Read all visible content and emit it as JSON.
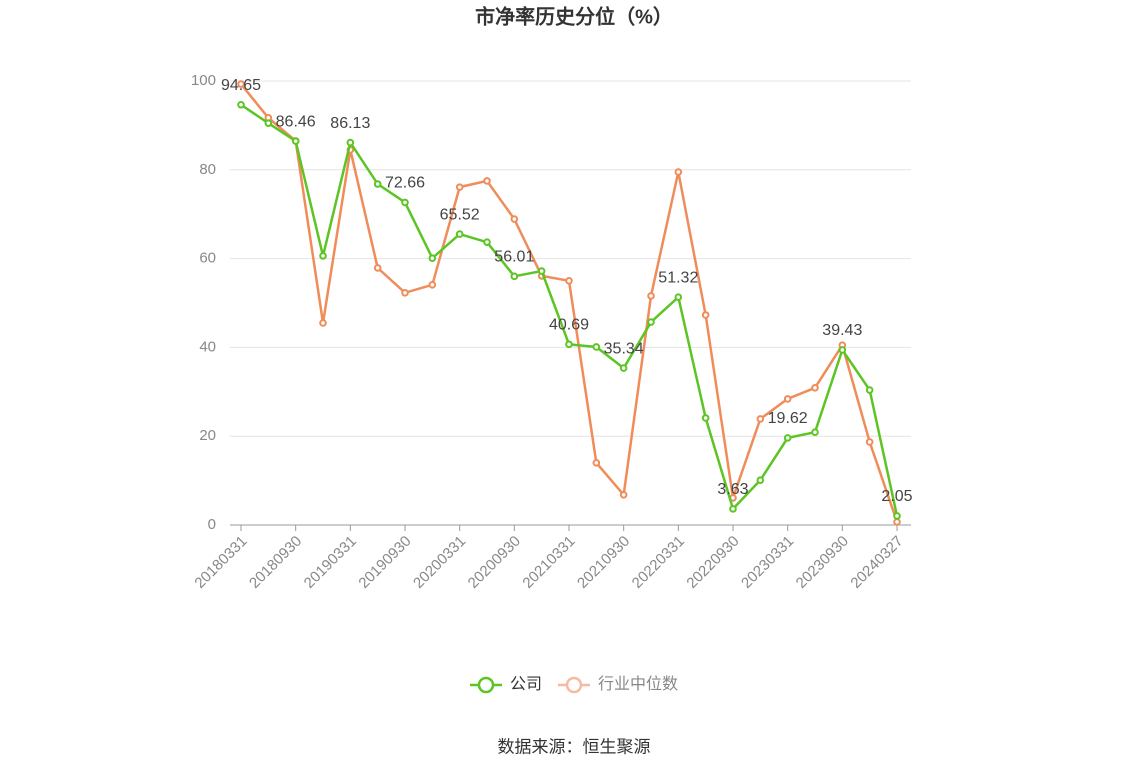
{
  "chart_data": {
    "type": "line",
    "title": "市净率历史分位（%）",
    "source": "数据来源：恒生聚源",
    "categories": [
      "20180331",
      null,
      "20180930",
      null,
      "20190331",
      null,
      "20190930",
      null,
      "20200331",
      null,
      "20200930",
      null,
      "20210331",
      null,
      "20210930",
      null,
      "20220331",
      null,
      "20220930",
      null,
      "20230331",
      null,
      "20230930",
      null,
      "20240327"
    ],
    "series": [
      {
        "name": "公司",
        "color": "#5cc523",
        "values": [
          94.65,
          90.5,
          86.46,
          60.6,
          86.13,
          76.8,
          72.66,
          60.1,
          65.52,
          63.7,
          56.01,
          57.2,
          40.69,
          40.1,
          35.34,
          45.7,
          51.32,
          24.1,
          3.63,
          10.1,
          19.62,
          20.9,
          39.43,
          30.4,
          2.05
        ],
        "value_labels": [
          "94.65",
          null,
          "86.46",
          null,
          "86.13",
          null,
          "72.66",
          null,
          "65.52",
          null,
          "56.01",
          null,
          "40.69",
          null,
          "35.34",
          null,
          "51.32",
          null,
          "3.63",
          null,
          "19.62",
          null,
          "39.43",
          null,
          "2.05"
        ]
      },
      {
        "name": "行业中位数",
        "color": "#f08c5a",
        "values": [
          99.3,
          91.7,
          86.5,
          45.5,
          84.5,
          57.9,
          52.3,
          54.1,
          76.1,
          77.5,
          68.9,
          56.1,
          55.0,
          14.0,
          6.8,
          51.6,
          79.5,
          47.3,
          6.1,
          23.9,
          28.4,
          30.9,
          40.5,
          18.7,
          0.7
        ]
      }
    ],
    "ylim": [
      0,
      100
    ],
    "yticks": [
      0,
      20,
      40,
      60,
      80,
      100
    ],
    "grid": true
  }
}
